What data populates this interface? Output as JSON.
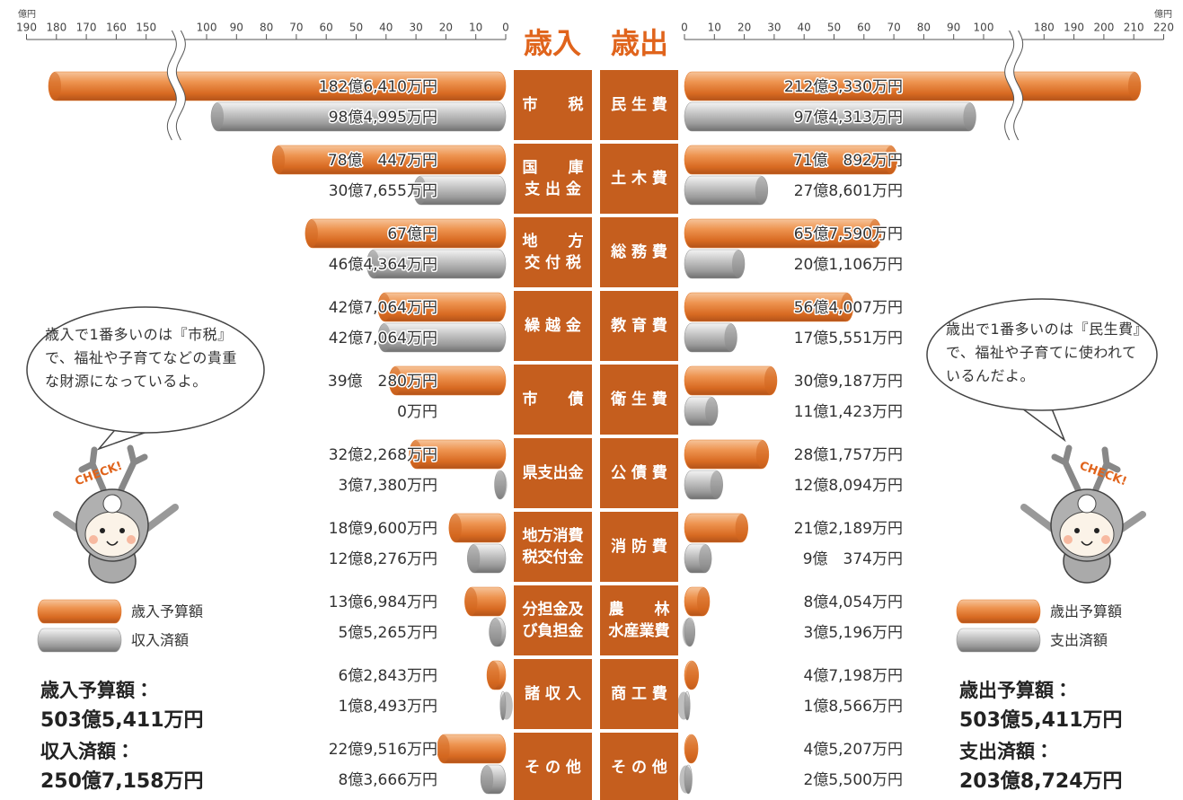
{
  "chart_data": {
    "type": "butterfly",
    "unit": "億円",
    "badge": "CHECK!",
    "sides": [
      {
        "title": "歳入",
        "direction": "left",
        "xlim": [
          0,
          190
        ],
        "xticks": [
          0,
          10,
          20,
          30,
          40,
          50,
          60,
          70,
          80,
          90,
          100,
          150,
          160,
          170,
          180,
          190
        ],
        "categories": [
          [
            "市　　税"
          ],
          [
            "国　　庫",
            "支 出 金"
          ],
          [
            "地　　方",
            "交 付 税"
          ],
          [
            "繰 越 金"
          ],
          [
            "市　　債"
          ],
          [
            "県支出金"
          ],
          [
            "地方消費",
            "税交付金"
          ],
          [
            "分担金及",
            "び負担金"
          ],
          [
            "諸 収 入"
          ],
          [
            "そ の 他"
          ]
        ],
        "series": [
          {
            "name": "歳入予算額",
            "color": "#e37a2f",
            "values": [
              182.641,
              78.0447,
              67,
              42.7064,
              39.028,
              32.2268,
              18.96,
              13.6984,
              6.2843,
              22.9516
            ],
            "value_labels": [
              "182億6,410万円",
              "78億　447万円",
              "67億円",
              "42億7,064万円",
              "39億　280万円",
              "32億2,268万円",
              "18億9,600万円",
              "13億6,984万円",
              "6億2,843万円",
              "22億9,516万円"
            ]
          },
          {
            "name": "収入済額",
            "color": "#9a9a9a",
            "values": [
              98.4995,
              30.7655,
              46.4364,
              42.7064,
              0,
              3.738,
              12.8276,
              5.5265,
              1.8493,
              8.3666
            ],
            "value_labels": [
              "98億4,995万円",
              "30億7,655万円",
              "46億4,364万円",
              "42億7,064万円",
              "0万円",
              "3億7,380万円",
              "12億8,276万円",
              "5億5,265万円",
              "1億8,493万円",
              "8億3,666万円"
            ]
          }
        ],
        "note": "歳入で1番多いのは『市税』で、福祉や子育てなどの貴重な財源になっているよ。",
        "totals": [
          {
            "label": "歳入予算額：",
            "value": "503億5,411万円"
          },
          {
            "label": "収入済額：",
            "value": "250億7,158万円"
          }
        ]
      },
      {
        "title": "歳出",
        "direction": "right",
        "xlim": [
          0,
          220
        ],
        "xticks": [
          0,
          10,
          20,
          30,
          40,
          50,
          60,
          70,
          80,
          90,
          100,
          180,
          190,
          200,
          210,
          220
        ],
        "categories": [
          [
            "民 生 費"
          ],
          [
            "土 木 費"
          ],
          [
            "総 務 費"
          ],
          [
            "教 育 費"
          ],
          [
            "衛 生 費"
          ],
          [
            "公 債 費"
          ],
          [
            "消 防 費"
          ],
          [
            "農　　林",
            "水産業費"
          ],
          [
            "商 工 費"
          ],
          [
            "そ の 他"
          ]
        ],
        "series": [
          {
            "name": "歳出予算額",
            "color": "#e37a2f",
            "values": [
              212.333,
              71.0892,
              65.759,
              56.4007,
              30.9187,
              28.1757,
              21.2189,
              8.4054,
              4.7198,
              4.5207
            ],
            "value_labels": [
              "212億3,330万円",
              "71億　892万円",
              "65億7,590万円",
              "56億4,007万円",
              "30億9,187万円",
              "28億1,757万円",
              "21億2,189万円",
              "8億4,054万円",
              "4億7,198万円",
              "4億5,207万円"
            ]
          },
          {
            "name": "支出済額",
            "color": "#9a9a9a",
            "values": [
              97.4313,
              27.8601,
              20.1106,
              17.5551,
              11.1423,
              12.8094,
              9.0374,
              3.5196,
              1.8566,
              2.55
            ],
            "value_labels": [
              "97億4,313万円",
              "27億8,601万円",
              "20億1,106万円",
              "17億5,551万円",
              "11億1,423万円",
              "12億8,094万円",
              "9億　374万円",
              "3億5,196万円",
              "1億8,566万円",
              "2億5,500万円"
            ]
          }
        ],
        "note": "歳出で1番多いのは『民生費』で、福祉や子育てに使われているんだよ。",
        "totals": [
          {
            "label": "歳出予算額：",
            "value": "503億5,411万円"
          },
          {
            "label": "支出済額：",
            "value": "203億8,724万円"
          }
        ]
      }
    ]
  }
}
